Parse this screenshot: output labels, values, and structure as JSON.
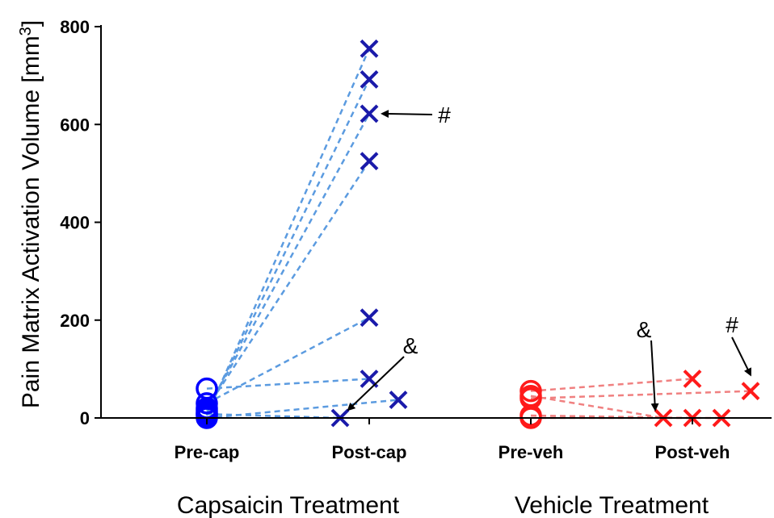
{
  "chart_data": {
    "type": "scatter",
    "ylabel": "Pain Matrix Activation Volume [mm",
    "ylabel_sup": "3",
    "ylabel_close": "]",
    "ylim": [
      0,
      800
    ],
    "yticks": [
      "0",
      "200",
      "400",
      "600",
      "800"
    ],
    "ytick_values": [
      0,
      200,
      400,
      600,
      800
    ],
    "categories": [
      "Pre-cap",
      "Post-cap",
      "Pre-veh",
      "Post-veh"
    ],
    "groups": [
      "Capsaicin Treatment",
      "Vehicle Treatment"
    ],
    "colors": {
      "capsaicin_marker": "#1a1aaa",
      "capsaicin_pre_marker": "#0000ff",
      "capsaicin_line": "#5b9be0",
      "vehicle_marker": "#ff1a1a",
      "vehicle_line": "#f08080"
    },
    "series": [
      {
        "group": "Capsaicin Treatment",
        "pre_category": "Pre-cap",
        "post_category": "Post-cap",
        "pairs": [
          {
            "pre": 5,
            "post": 755,
            "post_offset": 0
          },
          {
            "pre": 10,
            "post": 692,
            "post_offset": 0
          },
          {
            "pre": 15,
            "post": 622,
            "post_offset": 0
          },
          {
            "pre": 20,
            "post": 525,
            "post_offset": 0
          },
          {
            "pre": 30,
            "post": 205,
            "post_offset": 0
          },
          {
            "pre": 60,
            "post": 80,
            "post_offset": 0
          },
          {
            "pre": 0,
            "post": 37,
            "post_offset": 1
          },
          {
            "pre": 8,
            "post": 0,
            "post_offset": -1
          }
        ]
      },
      {
        "group": "Vehicle Treatment",
        "pre_category": "Pre-veh",
        "post_category": "Post-veh",
        "pairs": [
          {
            "pre": 55,
            "post": 80,
            "post_offset": 0
          },
          {
            "pre": 45,
            "post": 0,
            "post_offset": -1
          },
          {
            "pre": 5,
            "post": 0,
            "post_offset": 0
          },
          {
            "pre": 0,
            "post": 0,
            "post_offset": 1
          },
          {
            "pre": 40,
            "post": 55,
            "post_offset": 2
          }
        ]
      }
    ],
    "annotations": [
      {
        "text": "#",
        "target": "Capsaicin Treatment",
        "pair": 2
      },
      {
        "text": "&",
        "target": "Capsaicin Treatment",
        "pair": 7
      },
      {
        "text": "&",
        "target": "Vehicle Treatment",
        "pair": 1
      },
      {
        "text": "#",
        "target": "Vehicle Treatment",
        "pair": 4
      }
    ]
  }
}
